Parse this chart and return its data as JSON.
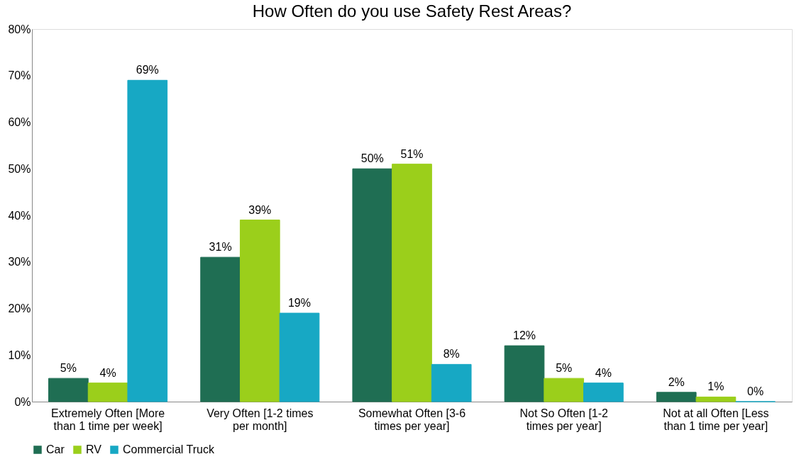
{
  "chart_data": {
    "type": "bar",
    "title": "How Often do you use Safety Rest Areas?",
    "categories": [
      "Extremely Often [More than 1 time per week]",
      "Very Often [1-2 times per month]",
      "Somewhat Often [3-6 times per year]",
      "Not So Often [1-2 times per year]",
      "Not at all Often [Less than 1 time per year]"
    ],
    "series": [
      {
        "name": "Car",
        "color": "#1f6e53",
        "values": [
          5,
          31,
          50,
          12,
          2
        ],
        "value_labels": [
          "5%",
          "31%",
          "50%",
          "12%",
          "2%"
        ]
      },
      {
        "name": "RV",
        "color": "#9bcf1b",
        "values": [
          4,
          39,
          51,
          5,
          1
        ],
        "value_labels": [
          "4%",
          "39%",
          "51%",
          "5%",
          "1%"
        ]
      },
      {
        "name": "Commercial Truck",
        "color": "#17a8c4",
        "values": [
          69,
          19,
          8,
          4,
          0
        ],
        "value_labels": [
          "69%",
          "19%",
          "8%",
          "4%",
          "0%"
        ]
      }
    ],
    "ylim": [
      0,
      80
    ],
    "yticks": [
      {
        "value": 0,
        "label": "0%"
      },
      {
        "value": 10,
        "label": "10%"
      },
      {
        "value": 20,
        "label": "20%"
      },
      {
        "value": 30,
        "label": "30%"
      },
      {
        "value": 40,
        "label": "40%"
      },
      {
        "value": 50,
        "label": "50%"
      },
      {
        "value": 60,
        "label": "60%"
      },
      {
        "value": 70,
        "label": "70%"
      },
      {
        "value": 80,
        "label": "80%"
      }
    ],
    "grid": false,
    "legend": "bottom"
  }
}
